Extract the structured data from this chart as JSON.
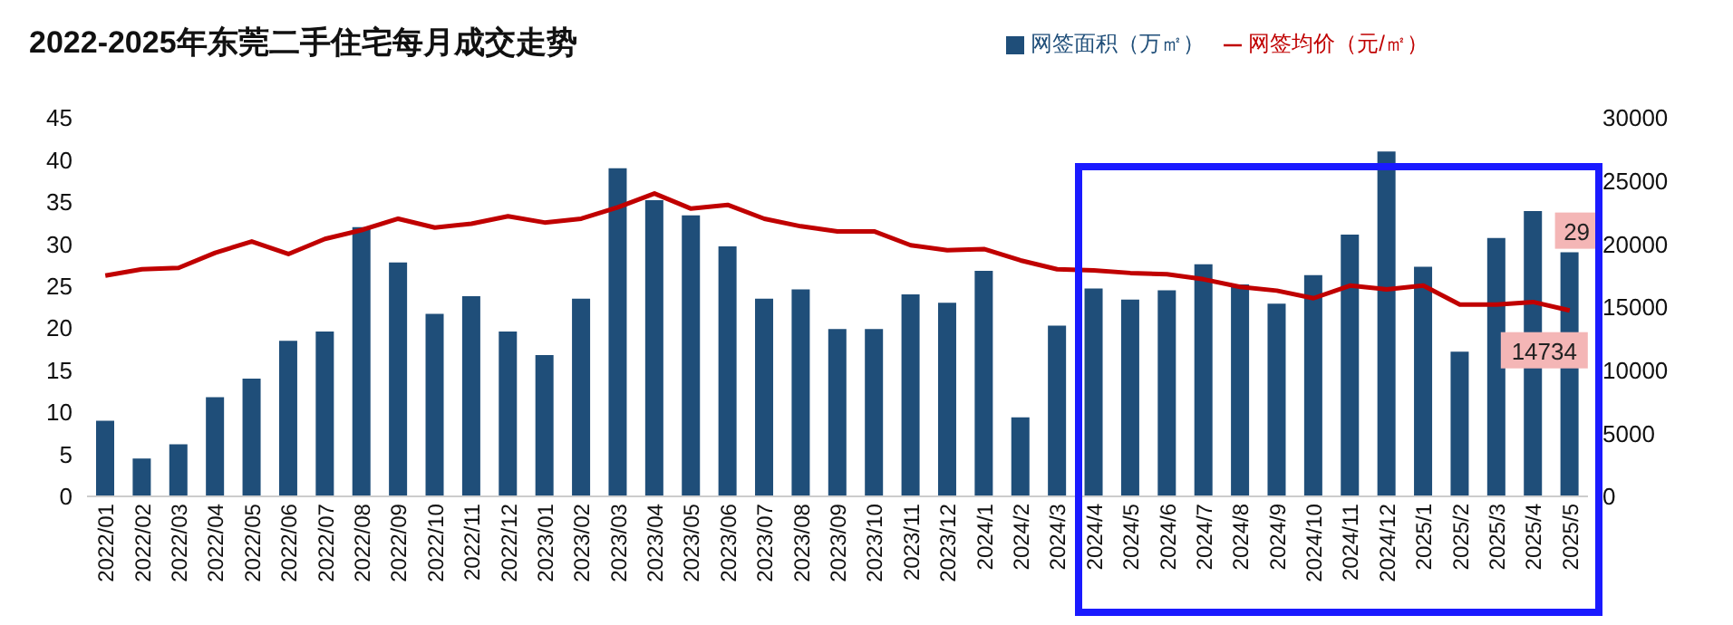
{
  "chart_data": {
    "type": "bar",
    "title": "2022-2025年东莞二手住宅每月成交走势",
    "categories": [
      "2022/01",
      "2022/02",
      "2022/03",
      "2022/04",
      "2022/05",
      "2022/06",
      "2022/07",
      "2022/08",
      "2022/09",
      "2022/10",
      "2022/11",
      "2022/12",
      "2023/01",
      "2023/02",
      "2023/03",
      "2023/04",
      "2023/05",
      "2023/06",
      "2023/07",
      "2023/08",
      "2023/09",
      "2023/10",
      "2023/11",
      "2023/12",
      "2024/1",
      "2024/2",
      "2024/3",
      "2024/4",
      "2024/5",
      "2024/6",
      "2024/7",
      "2024/8",
      "2024/9",
      "2024/10",
      "2024/11",
      "2024/12",
      "2025/1",
      "2025/2",
      "2025/3",
      "2025/4",
      "2025/5"
    ],
    "series": [
      {
        "name": "网签面积（万㎡）",
        "color": "#1f4e79",
        "values": [
          9,
          4.5,
          6.2,
          11.8,
          14,
          18.5,
          19.6,
          32,
          27.8,
          21.7,
          23.8,
          19.6,
          16.8,
          23.5,
          39,
          35.2,
          33.4,
          29.7,
          23.5,
          24.6,
          19.9,
          19.9,
          24,
          23,
          26.8,
          9.4,
          20.3,
          24.7,
          23.4,
          24.5,
          27.6,
          25.2,
          22.9,
          26.3,
          31.1,
          41,
          27.3,
          17.2,
          30.7,
          33.9,
          29
        ],
        "value_labels": [
          null,
          null,
          null,
          null,
          null,
          null,
          null,
          null,
          null,
          null,
          null,
          null,
          null,
          null,
          null,
          null,
          null,
          null,
          null,
          null,
          null,
          null,
          null,
          null,
          null,
          null,
          null,
          null,
          null,
          null,
          null,
          null,
          null,
          null,
          null,
          null,
          null,
          null,
          null,
          null,
          "29"
        ]
      },
      {
        "name": "网签均价（元/㎡）",
        "type": "line",
        "axis": "y2",
        "color": "#c00000",
        "values": [
          17500,
          18000,
          18100,
          19300,
          20200,
          19200,
          20400,
          21100,
          22000,
          21300,
          21600,
          22200,
          21700,
          22000,
          22900,
          24000,
          22800,
          23100,
          22000,
          21400,
          21000,
          21000,
          19900,
          19500,
          19600,
          18700,
          18000,
          17900,
          17700,
          17600,
          17200,
          16600,
          16300,
          15700,
          16700,
          16400,
          16700,
          15200,
          15200,
          15400,
          14734
        ],
        "value_labels": [
          null,
          null,
          null,
          null,
          null,
          null,
          null,
          null,
          null,
          null,
          null,
          null,
          null,
          null,
          null,
          null,
          null,
          null,
          null,
          null,
          null,
          null,
          null,
          null,
          null,
          null,
          null,
          null,
          null,
          null,
          null,
          null,
          null,
          null,
          null,
          null,
          null,
          null,
          null,
          null,
          "14734"
        ]
      }
    ],
    "ylim": [
      0,
      45
    ],
    "yticks": [
      0,
      5,
      10,
      15,
      20,
      25,
      30,
      35,
      40,
      45
    ],
    "y2lim": [
      0,
      30000
    ],
    "y2ticks": [
      0,
      5000,
      10000,
      15000,
      20000,
      25000,
      30000
    ],
    "legend": "top right",
    "grid": false,
    "marker": "none"
  }
}
